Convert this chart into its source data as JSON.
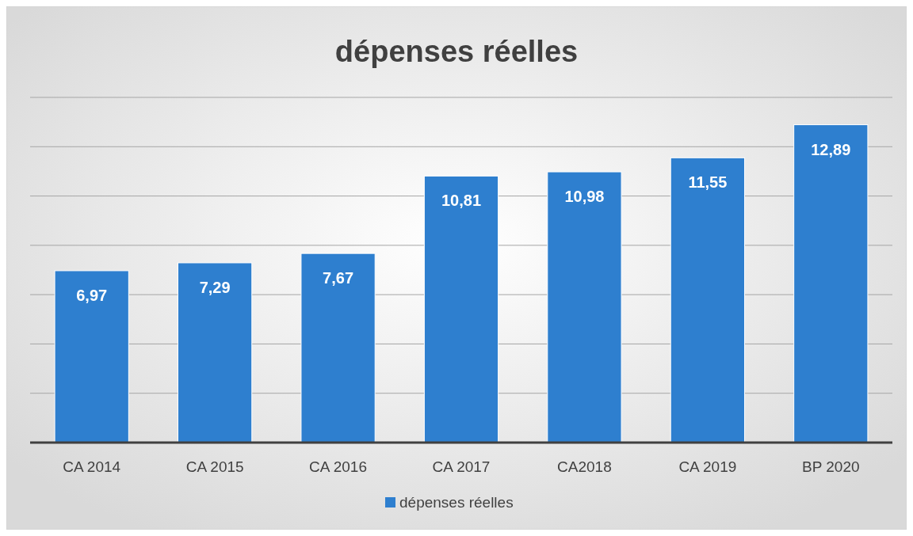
{
  "chart_data": {
    "type": "bar",
    "title": "dépenses réelles",
    "categories": [
      "CA 2014",
      "CA 2015",
      "CA 2016",
      "CA 2017",
      "CA2018",
      "CA 2019",
      "BP 2020"
    ],
    "series": [
      {
        "name": "dépenses réelles",
        "color": "#2e7fcf",
        "values": [
          6.97,
          7.29,
          7.67,
          10.81,
          10.98,
          11.55,
          12.89
        ],
        "value_labels": [
          "6,97",
          "7,29",
          "7,67",
          "10,81",
          "10,98",
          "11,55",
          "12,89"
        ]
      }
    ],
    "ylim": [
      0,
      14
    ],
    "yticks": [
      {
        "value": 0,
        "label": null
      },
      {
        "value": 2,
        "label": null
      },
      {
        "value": 4,
        "label": null
      },
      {
        "value": 6,
        "label": null
      },
      {
        "value": 8,
        "label": null
      },
      {
        "value": 10,
        "label": null
      },
      {
        "value": 12,
        "label": null
      },
      {
        "value": 14,
        "label": null
      }
    ],
    "tick_labels": "x",
    "grid": "y",
    "legend": "bottom"
  }
}
